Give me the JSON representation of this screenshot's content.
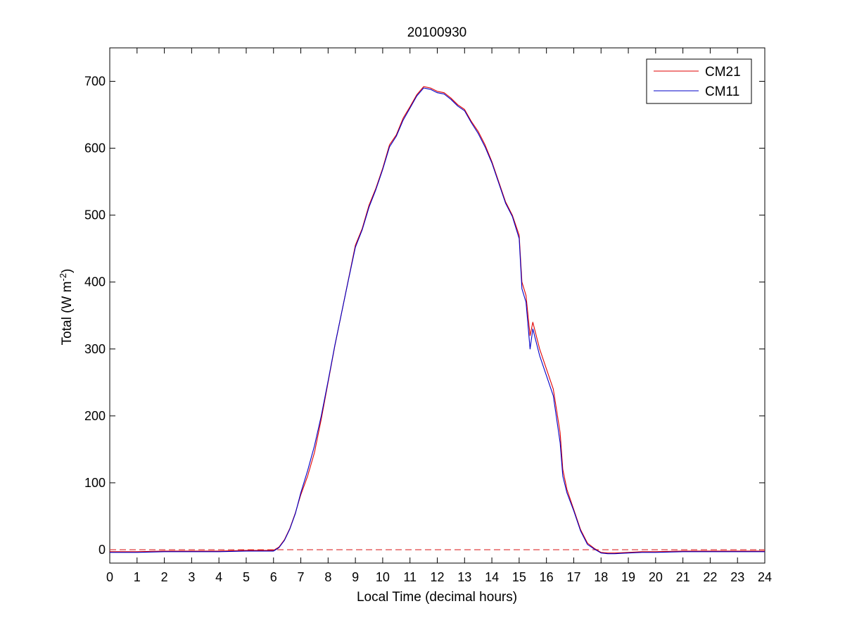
{
  "chart_data": {
    "type": "line",
    "title": "20100930",
    "xlabel": "Local Time (decimal hours)",
    "ylabel": "Total (W m",
    "ylabel_sup": "-2",
    "ylabel_close": ")",
    "xlim": [
      0,
      24
    ],
    "ylim": [
      -20,
      750
    ],
    "xticks": [
      0,
      1,
      2,
      3,
      4,
      5,
      6,
      7,
      8,
      9,
      10,
      11,
      12,
      13,
      14,
      15,
      16,
      17,
      18,
      19,
      20,
      21,
      22,
      23,
      24
    ],
    "yticks": [
      0,
      100,
      200,
      300,
      400,
      500,
      600,
      700
    ],
    "grid": false,
    "legend_position": "top-right",
    "reference_line": {
      "y": 0,
      "style": "dashed",
      "color": "#e04040"
    },
    "series": [
      {
        "name": "CM21",
        "color": "#e00000",
        "x": [
          0,
          1,
          2,
          3,
          4,
          5,
          5.5,
          6,
          6.2,
          6.4,
          6.6,
          6.8,
          7,
          7.25,
          7.5,
          7.75,
          8,
          8.25,
          8.5,
          8.75,
          9,
          9.25,
          9.5,
          9.75,
          10,
          10.25,
          10.5,
          10.75,
          11,
          11.25,
          11.5,
          11.75,
          12,
          12.25,
          12.5,
          12.75,
          13,
          13.25,
          13.5,
          13.75,
          14,
          14.25,
          14.5,
          14.75,
          15,
          15.1,
          15.25,
          15.4,
          15.5,
          15.75,
          16,
          16.25,
          16.5,
          16.6,
          16.75,
          17,
          17.25,
          17.5,
          17.75,
          18,
          18.25,
          18.5,
          19,
          19.5,
          20,
          21,
          22,
          23,
          24
        ],
        "y": [
          -3,
          -3,
          -2,
          -2,
          -2,
          -1,
          -1,
          -1,
          4,
          15,
          32,
          55,
          82,
          110,
          145,
          195,
          250,
          305,
          355,
          405,
          455,
          480,
          515,
          540,
          570,
          605,
          620,
          645,
          662,
          680,
          692,
          690,
          685,
          683,
          675,
          665,
          658,
          640,
          625,
          605,
          580,
          550,
          520,
          500,
          470,
          400,
          380,
          320,
          340,
          300,
          270,
          240,
          175,
          120,
          90,
          60,
          30,
          10,
          2,
          -4,
          -5,
          -5,
          -4,
          -3,
          -3,
          -2,
          -2,
          -2,
          -2
        ]
      },
      {
        "name": "CM11",
        "color": "#0000c8",
        "x": [
          0,
          1,
          2,
          3,
          4,
          5,
          5.5,
          6,
          6.2,
          6.4,
          6.6,
          6.8,
          7,
          7.25,
          7.5,
          7.75,
          8,
          8.25,
          8.5,
          8.75,
          9,
          9.25,
          9.5,
          9.75,
          10,
          10.25,
          10.5,
          10.75,
          11,
          11.25,
          11.5,
          11.75,
          12,
          12.25,
          12.5,
          12.75,
          13,
          13.25,
          13.5,
          13.75,
          14,
          14.25,
          14.5,
          14.75,
          15,
          15.1,
          15.25,
          15.4,
          15.5,
          15.75,
          16,
          16.25,
          16.5,
          16.6,
          16.75,
          17,
          17.25,
          17.5,
          17.75,
          18,
          18.25,
          18.5,
          19,
          19.5,
          20,
          21,
          22,
          23,
          24
        ],
        "y": [
          -4,
          -4,
          -3,
          -3,
          -3,
          -2,
          -2,
          -2,
          3,
          14,
          31,
          54,
          85,
          118,
          155,
          200,
          252,
          306,
          355,
          404,
          452,
          478,
          512,
          538,
          568,
          602,
          618,
          642,
          660,
          678,
          690,
          688,
          683,
          681,
          673,
          663,
          656,
          638,
          622,
          602,
          578,
          548,
          518,
          498,
          465,
          390,
          370,
          300,
          330,
          290,
          260,
          230,
          160,
          110,
          85,
          58,
          28,
          8,
          1,
          -5,
          -6,
          -6,
          -5,
          -4,
          -4,
          -3,
          -3,
          -3,
          -3
        ]
      }
    ]
  }
}
